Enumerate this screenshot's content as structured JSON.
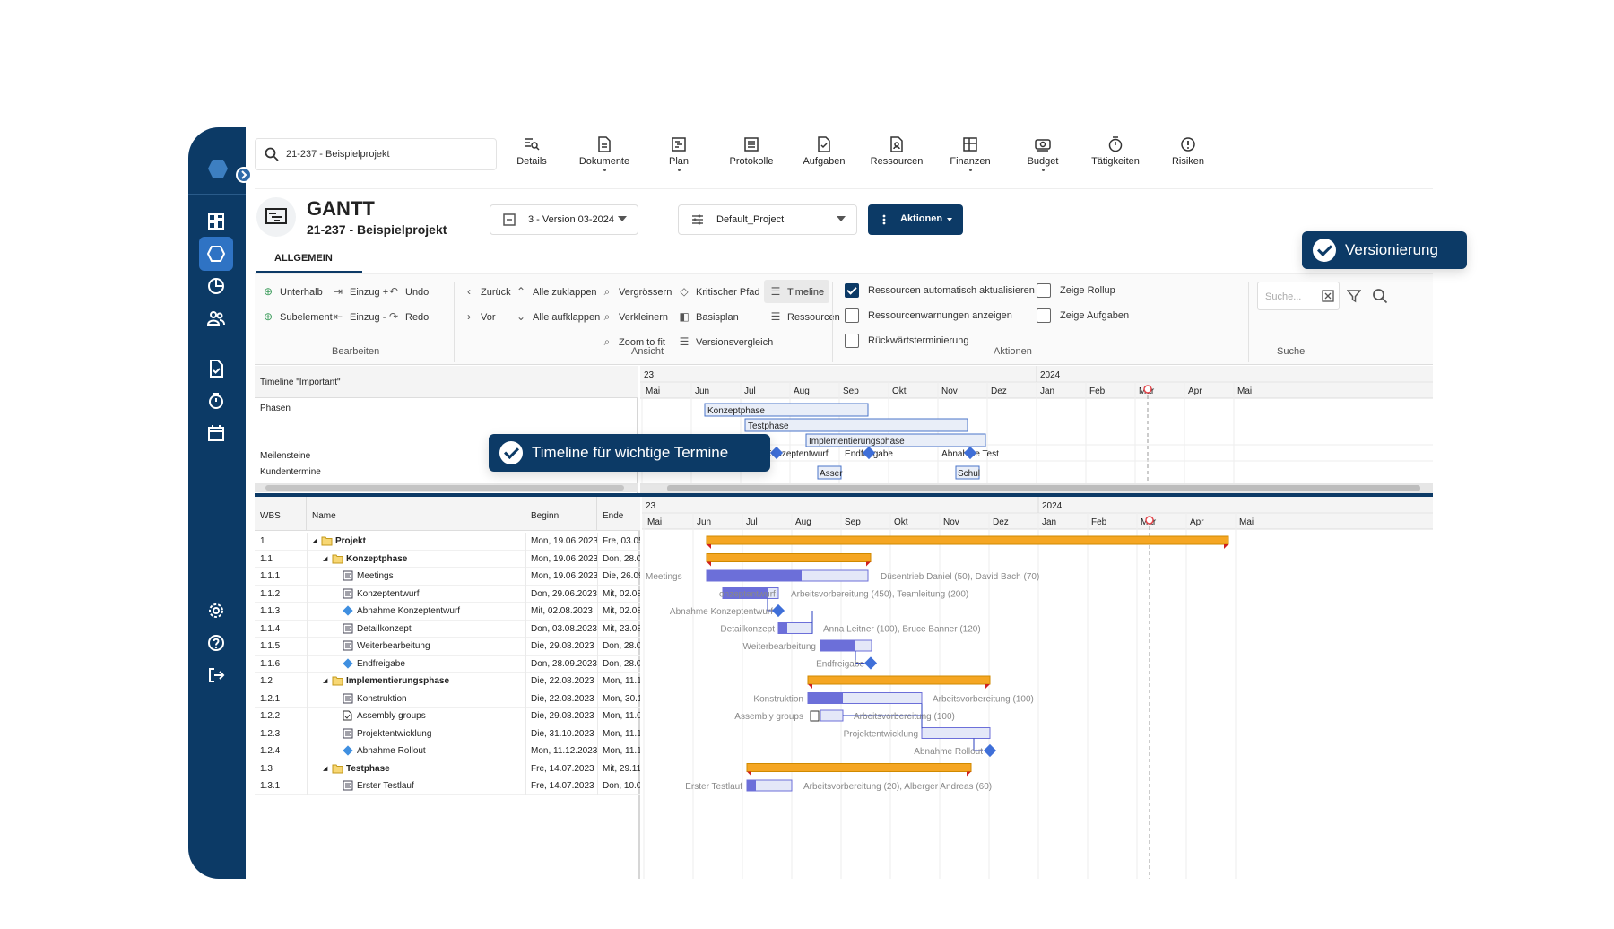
{
  "search": {
    "value": "21-237 - Beispielprojekt"
  },
  "nav": [
    {
      "label": "Details",
      "icon": "details-icon",
      "dot": false
    },
    {
      "label": "Dokumente",
      "icon": "document-icon",
      "dot": true
    },
    {
      "label": "Plan",
      "icon": "plan-icon",
      "dot": true
    },
    {
      "label": "Protokolle",
      "icon": "protocol-icon",
      "dot": false
    },
    {
      "label": "Aufgaben",
      "icon": "task-icon",
      "dot": false
    },
    {
      "label": "Ressourcen",
      "icon": "resource-icon",
      "dot": false
    },
    {
      "label": "Finanzen",
      "icon": "finance-icon",
      "dot": true
    },
    {
      "label": "Budget",
      "icon": "budget-icon",
      "dot": true
    },
    {
      "label": "Tätigkeiten",
      "icon": "timer-icon",
      "dot": false
    },
    {
      "label": "Risiken",
      "icon": "risk-icon",
      "dot": false
    }
  ],
  "header": {
    "title": "GANTT",
    "subtitle": "21-237 - Beispielprojekt"
  },
  "version_select": {
    "value": "3 - Version 03-2024"
  },
  "project_select": {
    "value": "Default_Project"
  },
  "actions_button": {
    "label": "Aktionen"
  },
  "tab": {
    "label": "ALLGEMEIN"
  },
  "ribbon": {
    "bearbeiten": {
      "group": "Bearbeiten",
      "items": [
        "Unterhalb",
        "Einzug +",
        "Undo",
        "Subelement",
        "Einzug -",
        "Redo"
      ]
    },
    "ansicht": {
      "group": "Ansicht",
      "items": [
        "Zurück",
        "Alle zuklappen",
        "Vergrössern",
        "Kritischer Pfad",
        "Timeline",
        "Vor",
        "Alle aufklappen",
        "Verkleinern",
        "Basisplan",
        "Ressourcen",
        "Zoom to fit",
        "Versionsvergleich"
      ]
    },
    "aktionen": {
      "group": "Aktionen",
      "items": [
        "Ressourcen automatisch aktualisieren",
        "Zeige Rollup",
        "Ressourcenwarnungen anzeigen",
        "Zeige Aufgaben",
        "Rückwärtsterminierung"
      ],
      "checked": [
        true,
        false,
        false,
        false,
        false
      ]
    },
    "suche": {
      "group": "Suche",
      "placeholder": "Suche..."
    }
  },
  "timeline": {
    "title": "Timeline \"Important\"",
    "rows": [
      "Phasen",
      "Meilensteine",
      "Kundentermine"
    ],
    "phases": [
      "Konzeptphase",
      "Testphase",
      "Implementierungsphase"
    ],
    "milestones": [
      "Abnahme Konzeptentwurf",
      "Endfreigabe",
      "Abnahme Test"
    ],
    "appointments": [
      "Asser",
      "Schul"
    ]
  },
  "axis": {
    "years": [
      "23",
      "2024"
    ],
    "months": [
      "Mai",
      "Jun",
      "Jul",
      "Aug",
      "Sep",
      "Okt",
      "Nov",
      "Dez",
      "Jan",
      "Feb",
      "Mär",
      "Apr",
      "Mai"
    ]
  },
  "table": {
    "columns": [
      "WBS",
      "Name",
      "Beginn",
      "Ende"
    ],
    "rows": [
      {
        "wbs": "1",
        "name": "Projekt",
        "begin": "Mon, 19.06.2023",
        "end": "Fre, 03.05",
        "type": "folder",
        "level": 0
      },
      {
        "wbs": "1.1",
        "name": "Konzeptphase",
        "begin": "Mon, 19.06.2023",
        "end": "Don, 28.09",
        "type": "folder",
        "level": 1
      },
      {
        "wbs": "1.1.1",
        "name": "Meetings",
        "begin": "Mon, 19.06.2023",
        "end": "Die, 26.09",
        "type": "task",
        "level": 2
      },
      {
        "wbs": "1.1.2",
        "name": "Konzeptentwurf",
        "begin": "Don, 29.06.2023",
        "end": "Mit, 02.08",
        "type": "task",
        "level": 2
      },
      {
        "wbs": "1.1.3",
        "name": "Abnahme Konzeptentwurf",
        "begin": "Mit, 02.08.2023",
        "end": "Mit, 02.08",
        "type": "milestone",
        "level": 2
      },
      {
        "wbs": "1.1.4",
        "name": "Detailkonzept",
        "begin": "Don, 03.08.2023",
        "end": "Mit, 23.08",
        "type": "task",
        "level": 2
      },
      {
        "wbs": "1.1.5",
        "name": "Weiterbearbeitung",
        "begin": "Die, 29.08.2023",
        "end": "Don, 28.09",
        "type": "task",
        "level": 2
      },
      {
        "wbs": "1.1.6",
        "name": "Endfreigabe",
        "begin": "Don, 28.09.2023",
        "end": "Don, 28.09",
        "type": "milestone",
        "level": 2
      },
      {
        "wbs": "1.2",
        "name": "Implementierungsphase",
        "begin": "Die, 22.08.2023",
        "end": "Mon, 11.12",
        "type": "folder",
        "level": 1
      },
      {
        "wbs": "1.2.1",
        "name": "Konstruktion",
        "begin": "Die, 22.08.2023",
        "end": "Mon, 30.10",
        "type": "task",
        "level": 2
      },
      {
        "wbs": "1.2.2",
        "name": "Assembly groups",
        "begin": "Die, 29.08.2023",
        "end": "Mon, 11.09",
        "type": "doc",
        "level": 2
      },
      {
        "wbs": "1.2.3",
        "name": "Projektentwicklung",
        "begin": "Die, 31.10.2023",
        "end": "Mon, 11.12",
        "type": "task",
        "level": 2
      },
      {
        "wbs": "1.2.4",
        "name": "Abnahme Rollout",
        "begin": "Mon, 11.12.2023",
        "end": "Mon, 11.12",
        "type": "milestone",
        "level": 2
      },
      {
        "wbs": "1.3",
        "name": "Testphase",
        "begin": "Fre, 14.07.2023",
        "end": "Mit, 29.11",
        "type": "folder",
        "level": 1
      },
      {
        "wbs": "1.3.1",
        "name": "Erster Testlauf",
        "begin": "Fre, 14.07.2023",
        "end": "Don, 10.08",
        "type": "task",
        "level": 2
      }
    ]
  },
  "gantt_labels": {
    "left": [
      "Meetings",
      "onzeptentwurf",
      "Abnahme Konzeptentwurf",
      "Detailkonzept",
      "Weiterbearbeitung",
      "Endfreigabe",
      "Konstruktion",
      "Assembly groups",
      "Projektentwicklung",
      "Abnahme Rollout",
      "Erster Testlauf"
    ],
    "right": [
      "Düsentrieb Daniel (50), David Bach (70)",
      "Arbeitsvorbereitung (450), Teamleitung (200)",
      "Anna Leitner (100), Bruce Banner (120)",
      "Arbeitsvorbereitung (100)",
      "Arbeitsvorbereitung (100)",
      "Arbeitsvorbereitung (20), Alberger Andreas (60)"
    ]
  },
  "badges": {
    "versioning": "Versionierung",
    "timeline": "Timeline für wichtige Termine"
  },
  "colors": {
    "sidebar": "#0c3a66",
    "accent": "#2f73c4",
    "summary_bar": "#f5a623",
    "task_bar": "#6c6fd9",
    "today": "#e5484d"
  }
}
